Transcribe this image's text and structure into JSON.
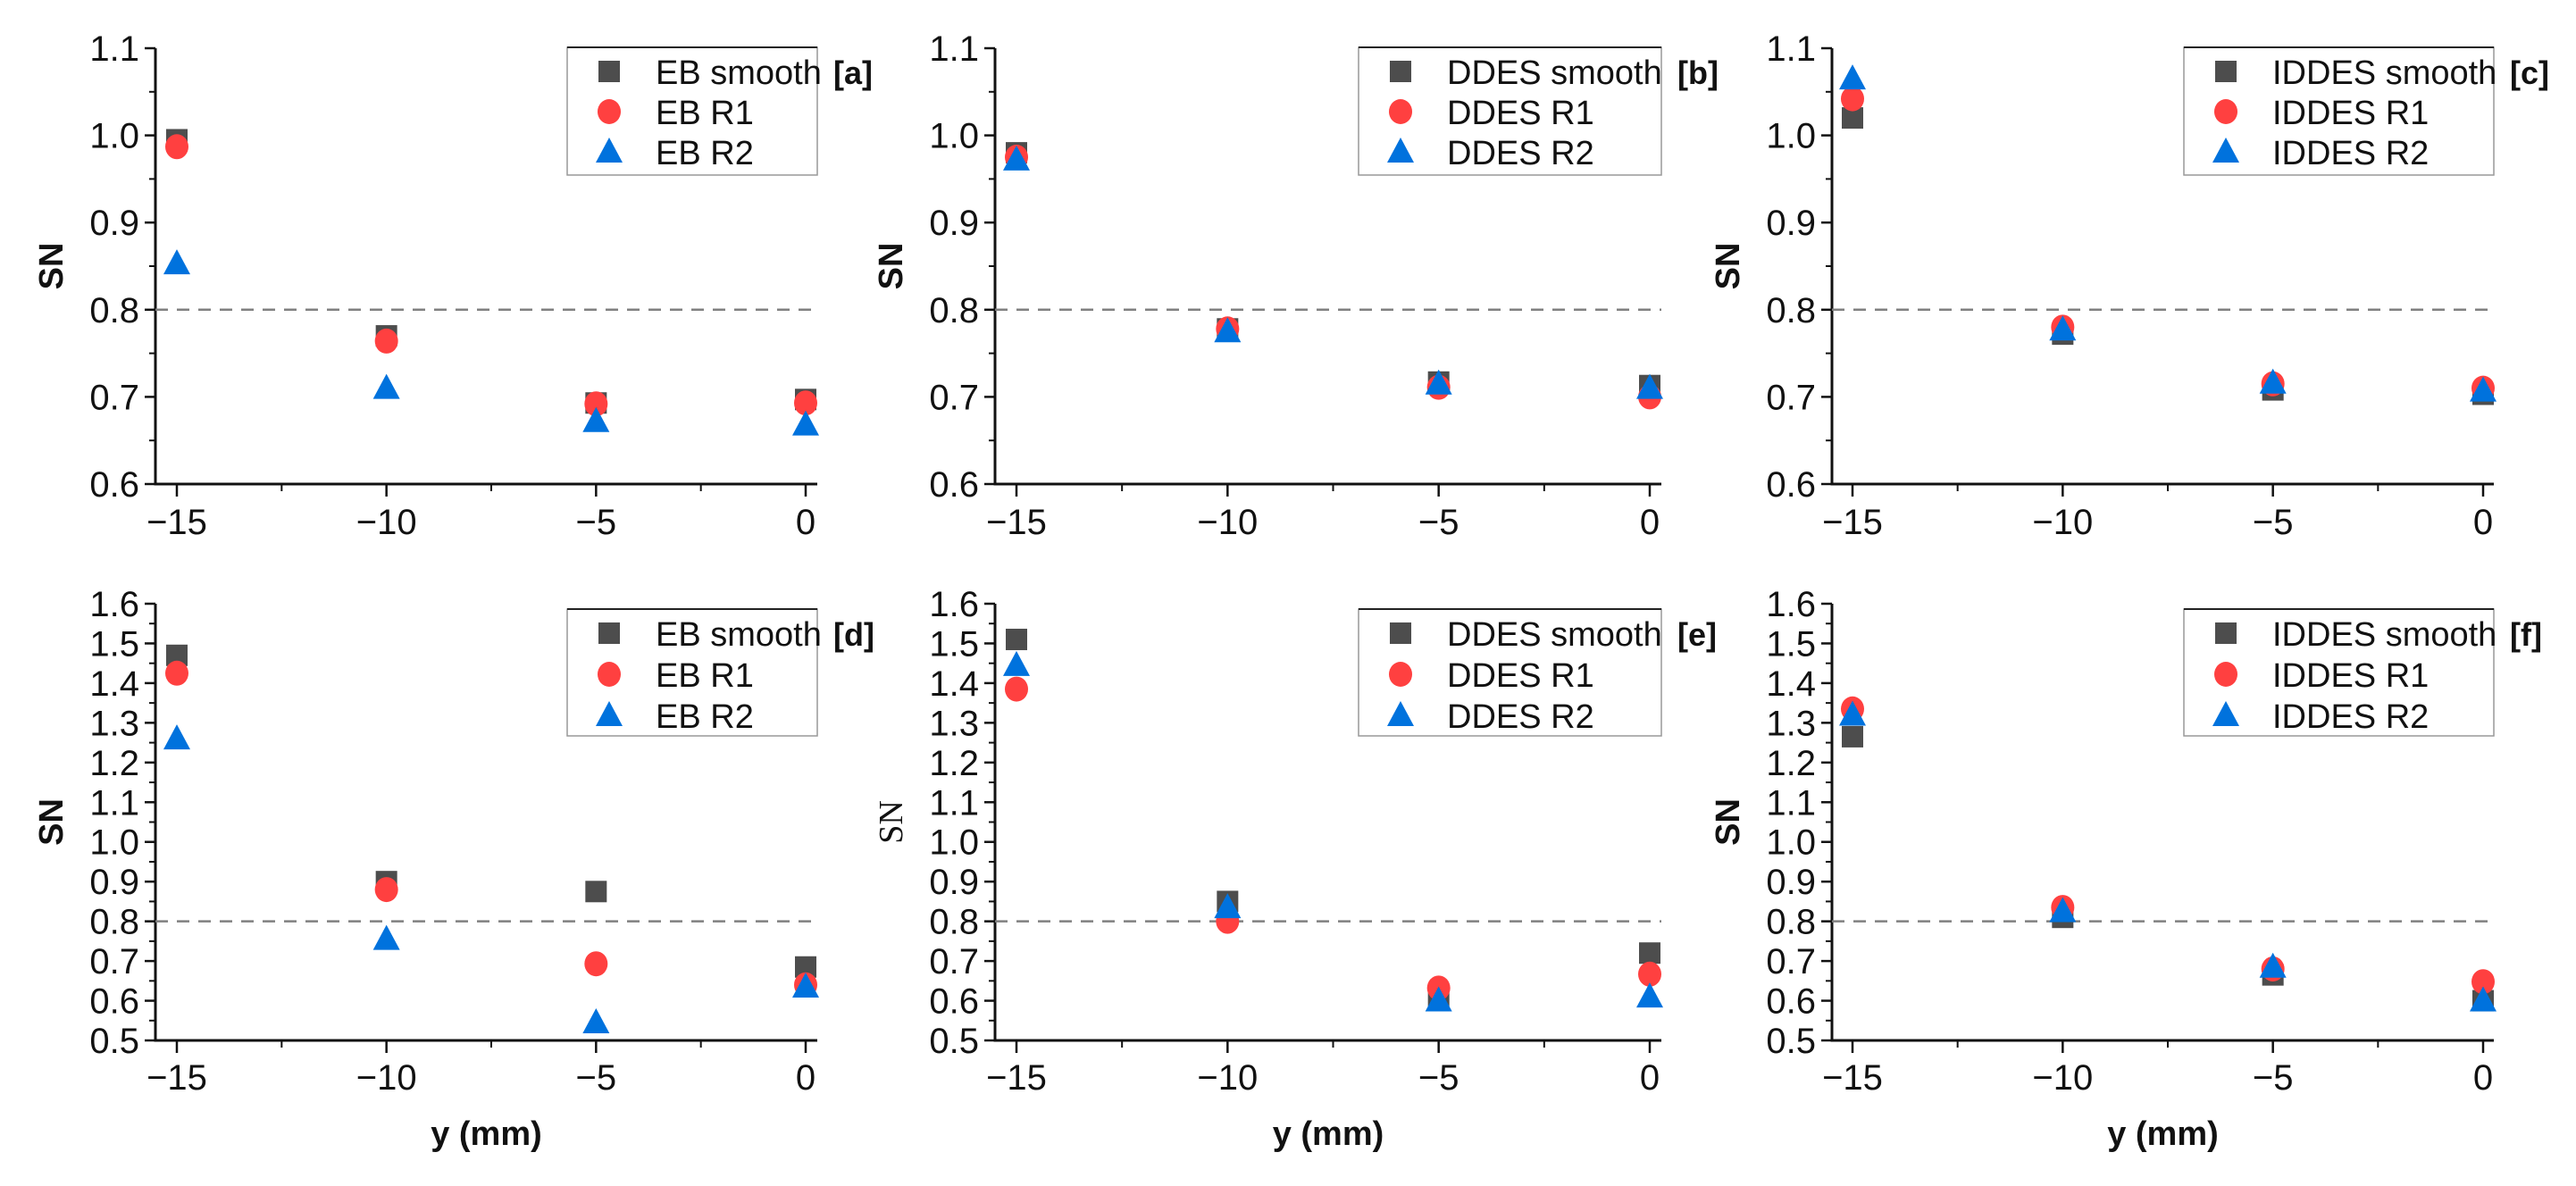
{
  "colors": {
    "smooth": "#4d4d4d",
    "R1": "#ff4040",
    "R2": "#0072dd",
    "ref_line": "#808080"
  },
  "chart_data": [
    {
      "type": "scatter",
      "panel_label": "[a]",
      "ylabel": "SN",
      "xlabel": "",
      "x": [
        -15,
        -10,
        -5,
        0
      ],
      "xlim": [
        -15.5,
        0.5
      ],
      "ylim": [
        0.6,
        1.1
      ],
      "xticks": [
        "−15",
        "−10",
        "−5",
        "0"
      ],
      "yticks": [
        "0.6",
        "0.7",
        "0.8",
        "0.9",
        "1.0",
        "1.1"
      ],
      "reference_line": 0.8,
      "legend": "top-right",
      "series": [
        {
          "name": "EB smooth",
          "marker": "square",
          "values": [
            0.995,
            0.77,
            0.693,
            0.697
          ]
        },
        {
          "name": "EB R1",
          "marker": "circle",
          "values": [
            0.987,
            0.764,
            0.692,
            0.693
          ]
        },
        {
          "name": "EB R2",
          "marker": "triangle",
          "values": [
            0.853,
            0.71,
            0.672,
            0.668
          ]
        }
      ]
    },
    {
      "type": "scatter",
      "panel_label": "[b]",
      "ylabel": "SN",
      "xlabel": "",
      "x": [
        -15,
        -10,
        -5,
        0
      ],
      "xlim": [
        -15.5,
        0.5
      ],
      "ylim": [
        0.6,
        1.1
      ],
      "xticks": [
        "−15",
        "−10",
        "−5",
        "0"
      ],
      "yticks": [
        "0.6",
        "0.7",
        "0.8",
        "0.9",
        "1.0",
        "1.1"
      ],
      "reference_line": 0.8,
      "legend": "top-right",
      "series": [
        {
          "name": "DDES smooth",
          "marker": "square",
          "values": [
            0.98,
            0.778,
            0.717,
            0.713
          ]
        },
        {
          "name": "DDES R1",
          "marker": "circle",
          "values": [
            0.975,
            0.778,
            0.711,
            0.7
          ]
        },
        {
          "name": "DDES R2",
          "marker": "triangle",
          "values": [
            0.972,
            0.775,
            0.715,
            0.71
          ]
        }
      ]
    },
    {
      "type": "scatter",
      "panel_label": "[c]",
      "ylabel": "SN",
      "xlabel": "",
      "x": [
        -15,
        -10,
        -5,
        0
      ],
      "xlim": [
        -15.5,
        0.5
      ],
      "ylim": [
        0.6,
        1.1
      ],
      "xticks": [
        "−15",
        "−10",
        "−5",
        "0"
      ],
      "yticks": [
        "0.6",
        "0.7",
        "0.8",
        "0.9",
        "1.0",
        "1.1"
      ],
      "reference_line": 0.8,
      "legend": "top-right",
      "series": [
        {
          "name": "IDDES smooth",
          "marker": "square",
          "values": [
            1.02,
            0.772,
            0.708,
            0.703
          ]
        },
        {
          "name": "IDDES R1",
          "marker": "circle",
          "values": [
            1.042,
            0.78,
            0.715,
            0.71
          ]
        },
        {
          "name": "IDDES R2",
          "marker": "triangle",
          "values": [
            1.065,
            0.777,
            0.716,
            0.707
          ]
        }
      ]
    },
    {
      "type": "scatter",
      "panel_label": "[d]",
      "ylabel": "SN",
      "xlabel": "y (mm)",
      "x": [
        -15,
        -10,
        -5,
        0
      ],
      "xlim": [
        -15.5,
        0.5
      ],
      "ylim": [
        0.5,
        1.6
      ],
      "xticks": [
        "−15",
        "−10",
        "−5",
        "0"
      ],
      "yticks": [
        "0.5",
        "0.6",
        "0.7",
        "0.8",
        "0.9",
        "1.0",
        "1.1",
        "1.2",
        "1.3",
        "1.4",
        "1.5",
        "1.6"
      ],
      "reference_line": 0.8,
      "legend": "top-right",
      "series": [
        {
          "name": "EB smooth",
          "marker": "square",
          "values": [
            1.47,
            0.9,
            0.875,
            0.685
          ]
        },
        {
          "name": "EB R1",
          "marker": "circle",
          "values": [
            1.425,
            0.88,
            0.693,
            0.64
          ]
        },
        {
          "name": "EB R2",
          "marker": "triangle",
          "values": [
            1.26,
            0.755,
            0.545,
            0.635
          ]
        }
      ]
    },
    {
      "type": "scatter",
      "panel_label": "[e]",
      "ylabel": "SN",
      "ylabel_serif": true,
      "xlabel": "y (mm)",
      "x": [
        -15,
        -10,
        -5,
        0
      ],
      "xlim": [
        -15.5,
        0.5
      ],
      "ylim": [
        0.5,
        1.6
      ],
      "xticks": [
        "−15",
        "−10",
        "−5",
        "0"
      ],
      "yticks": [
        "0.5",
        "0.6",
        "0.7",
        "0.8",
        "0.9",
        "1.0",
        "1.1",
        "1.2",
        "1.3",
        "1.4",
        "1.5",
        "1.6"
      ],
      "reference_line": 0.8,
      "legend": "top-right",
      "series": [
        {
          "name": "DDES smooth",
          "marker": "square",
          "values": [
            1.51,
            0.85,
            0.61,
            0.72
          ]
        },
        {
          "name": "DDES R1",
          "marker": "circle",
          "values": [
            1.385,
            0.8,
            0.632,
            0.667
          ]
        },
        {
          "name": "DDES R2",
          "marker": "triangle",
          "values": [
            1.445,
            0.835,
            0.6,
            0.61
          ]
        }
      ]
    },
    {
      "type": "scatter",
      "panel_label": "[f]",
      "ylabel": "SN",
      "xlabel": "y (mm)",
      "x": [
        -15,
        -10,
        -5,
        0
      ],
      "xlim": [
        -15.5,
        0.5
      ],
      "ylim": [
        0.5,
        1.6
      ],
      "xticks": [
        "−15",
        "−10",
        "−5",
        "0"
      ],
      "yticks": [
        "0.5",
        "0.6",
        "0.7",
        "0.8",
        "0.9",
        "1.0",
        "1.1",
        "1.2",
        "1.3",
        "1.4",
        "1.5",
        "1.6"
      ],
      "reference_line": 0.8,
      "legend": "top-right",
      "series": [
        {
          "name": "IDDES smooth",
          "marker": "square",
          "values": [
            1.265,
            0.81,
            0.665,
            0.6
          ]
        },
        {
          "name": "IDDES R1",
          "marker": "circle",
          "values": [
            1.335,
            0.835,
            0.68,
            0.648
          ]
        },
        {
          "name": "IDDES R2",
          "marker": "triangle",
          "values": [
            1.32,
            0.825,
            0.685,
            0.6
          ]
        }
      ]
    }
  ]
}
